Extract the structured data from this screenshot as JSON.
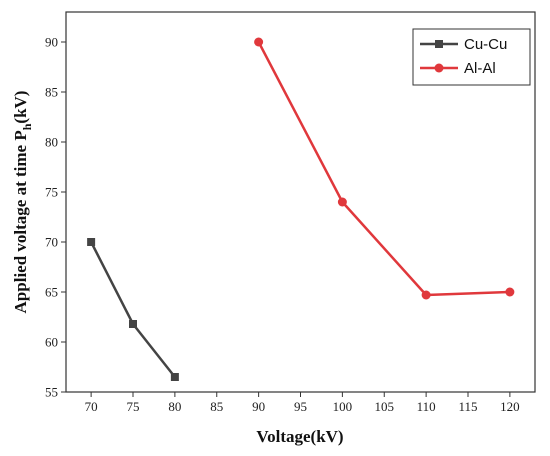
{
  "chart_data": {
    "type": "line",
    "title": "",
    "xlabel": "Voltage(kV)",
    "ylabel_main": "Applied voltage at time P",
    "ylabel_sub": "h",
    "ylabel_tail": "(kV)",
    "xlim": [
      67,
      123
    ],
    "ylim": [
      55,
      93
    ],
    "xticks": [
      70,
      75,
      80,
      85,
      90,
      95,
      100,
      105,
      110,
      115,
      120
    ],
    "yticks": [
      55,
      60,
      65,
      70,
      75,
      80,
      85,
      90
    ],
    "grid": false,
    "legend_position": "top-right",
    "series": [
      {
        "name": "Cu-Cu",
        "color": "#444444",
        "marker": "square",
        "x": [
          70,
          75,
          80
        ],
        "y": [
          70,
          61.8,
          56.5
        ]
      },
      {
        "name": "Al-Al",
        "color": "#e0383c",
        "marker": "circle",
        "x": [
          90,
          100,
          110,
          120
        ],
        "y": [
          90,
          74,
          64.7,
          65
        ]
      }
    ]
  }
}
